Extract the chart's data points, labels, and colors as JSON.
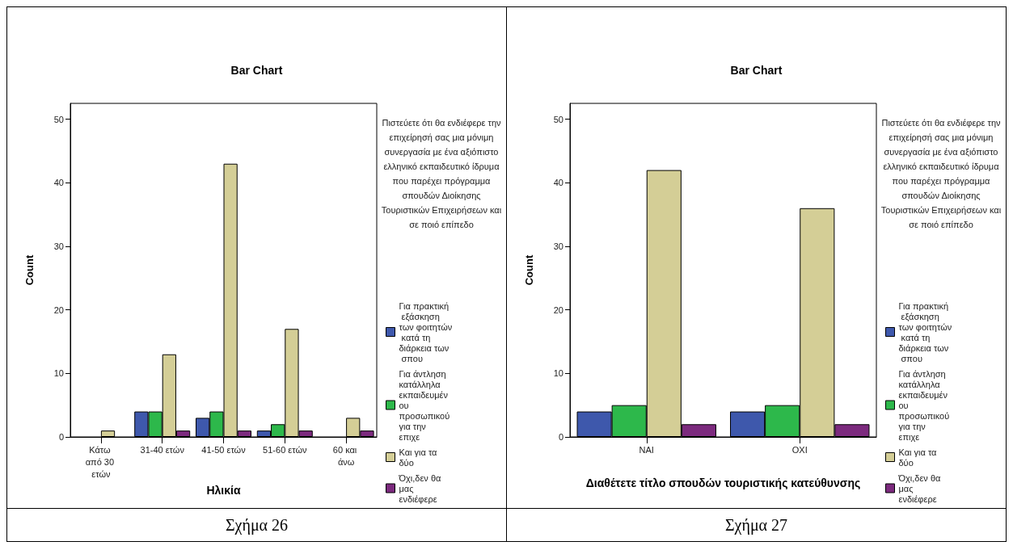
{
  "chart_data": [
    {
      "type": "bar",
      "title": "Bar Chart",
      "xlabel": "Ηλικία",
      "ylabel": "Count",
      "legend_title": "Πιστεύετε ότι θα ενδιέφερε την επιχείρησή σας μια μόνιμη συνεργασία με ένα αξιόπιστο ελληνικό εκπαιδευτικό ίδρυμα που παρέχει πρόγραμμα σπουδών Διοίκησης Τουριστικών Επιχειρήσεων και σε ποιό επίπεδο",
      "categories": [
        "Κάτω από 30 ετών",
        "31-40 ετών",
        "41-50 ετών",
        "51-60 ετών",
        "60 και άνω"
      ],
      "series": [
        {
          "name": "Για πρακτική εξάσκηση των φοιτητών κατά τη διάρκεια των σπου",
          "color": "#3e58ac",
          "values": [
            null,
            4,
            3,
            1,
            null
          ]
        },
        {
          "name": "Για άντληση κατάλληλα εκπαιδευμένου προσωπικού για την επιχε",
          "color": "#2db84b",
          "values": [
            null,
            4,
            4,
            2,
            null
          ]
        },
        {
          "name": "Και για τα δύο",
          "color": "#d4ce96",
          "values": [
            1,
            13,
            43,
            17,
            3
          ]
        },
        {
          "name": "Όχι,δεν θα μας ενδιέφερε",
          "color": "#7c2a7e",
          "values": [
            null,
            1,
            1,
            1,
            1
          ]
        }
      ],
      "ylim": [
        0,
        52.5
      ],
      "yticks": [
        0,
        10,
        20,
        30,
        40,
        50
      ],
      "grid": false,
      "legend": "right",
      "annotations": [
        "Σχήμα 26"
      ]
    },
    {
      "type": "bar",
      "title": "Bar Chart",
      "xlabel": "Διαθέτετε τίτλο σπουδών τουριστικής κατεύθυνσης",
      "ylabel": "Count",
      "legend_title": "Πιστεύετε ότι θα ενδιέφερε την επιχείρησή σας μια μόνιμη συνεργασία με ένα αξιόπιστο ελληνικό εκπαιδευτικό ίδρυμα που παρέχει πρόγραμμα σπουδών Διοίκησης Τουριστικών Επιχειρήσεων και σε ποιό επίπεδο",
      "categories": [
        "ΝΑΙ",
        "ΟΧΙ"
      ],
      "series": [
        {
          "name": "Για πρακτική εξάσκηση των φοιτητών κατά τη διάρκεια των σπου",
          "color": "#3e58ac",
          "values": [
            4,
            4
          ]
        },
        {
          "name": "Για άντληση κατάλληλα εκπαιδευμένου προσωπικού για την επιχε",
          "color": "#2db84b",
          "values": [
            5,
            5
          ]
        },
        {
          "name": "Και για τα δύο",
          "color": "#d4ce96",
          "values": [
            42,
            36
          ]
        },
        {
          "name": "Όχι,δεν θα μας ενδιέφερε",
          "color": "#7c2a7e",
          "values": [
            2,
            2
          ]
        }
      ],
      "ylim": [
        0,
        52.5
      ],
      "yticks": [
        0,
        10,
        20,
        30,
        40,
        50
      ],
      "grid": false,
      "legend": "right",
      "annotations": [
        "Σχήμα 27"
      ]
    }
  ]
}
